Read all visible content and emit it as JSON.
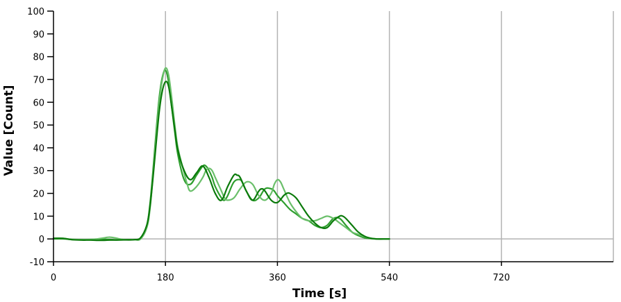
{
  "chart_data": {
    "type": "line",
    "title": "",
    "xlabel": "Time [s]",
    "ylabel": "Value [Count]",
    "xlim": [
      0,
      900
    ],
    "ylim": [
      -10,
      100
    ],
    "x_ticks": [
      0,
      180,
      360,
      540,
      720
    ],
    "y_ticks": [
      -10,
      0,
      10,
      20,
      30,
      40,
      50,
      60,
      70,
      80,
      90,
      100
    ],
    "grid": true,
    "series": [
      {
        "color": "#2e9e2e",
        "x": [
          0,
          15,
          30,
          45,
          60,
          75,
          90,
          100,
          110,
          120,
          130,
          140,
          150,
          155,
          160,
          165,
          170,
          175,
          180,
          185,
          190,
          195,
          200,
          210,
          220,
          230,
          240,
          245,
          250,
          255,
          260,
          270,
          275,
          280,
          290,
          300,
          305,
          310,
          320,
          330,
          340,
          350,
          355,
          360,
          370,
          380,
          390,
          400,
          410,
          420,
          430,
          440,
          450,
          460,
          470,
          480,
          490,
          500,
          510,
          520,
          530,
          540
        ],
        "y": [
          0.3,
          0.3,
          -0.3,
          -0.3,
          -0.3,
          -0.2,
          -0.2,
          -0.4,
          -0.4,
          -0.3,
          -0.3,
          0.5,
          6,
          15,
          30,
          47,
          62,
          71,
          74,
          69,
          58,
          47,
          37,
          26,
          24,
          28,
          32,
          32,
          30,
          27,
          23,
          18,
          17,
          19,
          25,
          26,
          24,
          21,
          17,
          18,
          22,
          22,
          21,
          19,
          16,
          13,
          11,
          9,
          8,
          6,
          5,
          6,
          9,
          9,
          6,
          3,
          1.5,
          0.5,
          0.2,
          0,
          0,
          0
        ]
      },
      {
        "color": "#6abf6a",
        "x": [
          0,
          15,
          30,
          45,
          60,
          70,
          80,
          90,
          100,
          110,
          120,
          130,
          140,
          150,
          155,
          160,
          165,
          170,
          175,
          180,
          185,
          190,
          195,
          200,
          210,
          215,
          220,
          230,
          240,
          245,
          250,
          255,
          260,
          265,
          270,
          275,
          280,
          290,
          300,
          310,
          320,
          330,
          340,
          350,
          355,
          360,
          365,
          370,
          380,
          390,
          400,
          410,
          420,
          430,
          440,
          450,
          460,
          470,
          480,
          490,
          500,
          510,
          520,
          530,
          540
        ],
        "y": [
          0,
          0,
          -0.2,
          -0.3,
          -0.2,
          0,
          0.4,
          0.8,
          0.4,
          -0.2,
          -0.4,
          -0.3,
          0,
          5,
          13,
          28,
          45,
          60,
          70,
          75,
          72,
          62,
          50,
          40,
          29,
          24,
          21,
          23,
          27,
          30,
          31,
          30,
          27,
          24,
          21,
          18,
          17,
          18,
          22,
          25,
          24,
          19,
          17,
          20,
          24,
          26,
          25,
          22,
          16,
          12,
          9,
          8,
          8,
          9,
          10,
          9,
          7,
          5,
          3,
          2,
          1,
          0.3,
          0,
          0,
          0
        ]
      },
      {
        "color": "#0b7a0b",
        "x": [
          0,
          15,
          30,
          45,
          60,
          75,
          90,
          100,
          110,
          120,
          130,
          140,
          150,
          155,
          160,
          165,
          170,
          175,
          180,
          185,
          190,
          195,
          200,
          210,
          220,
          230,
          240,
          250,
          260,
          270,
          280,
          290,
          295,
          300,
          310,
          320,
          330,
          335,
          340,
          350,
          360,
          370,
          375,
          380,
          390,
          400,
          410,
          420,
          430,
          440,
          450,
          460,
          465,
          470,
          480,
          490,
          500,
          510,
          520,
          530,
          540
        ],
        "y": [
          0.2,
          0.2,
          -0.3,
          -0.5,
          -0.5,
          -0.6,
          -0.5,
          -0.5,
          -0.4,
          -0.4,
          -0.3,
          0.5,
          6,
          14,
          27,
          42,
          56,
          65,
          69,
          67,
          58,
          48,
          39,
          30,
          26,
          29,
          32,
          27,
          20,
          17,
          23,
          28,
          28,
          27,
          21,
          17,
          21,
          22,
          21,
          17,
          16,
          19,
          20,
          20,
          18,
          14,
          10,
          7,
          5,
          5,
          8,
          10,
          10,
          9,
          6,
          3,
          1.2,
          0.3,
          0,
          0,
          0
        ]
      }
    ]
  }
}
